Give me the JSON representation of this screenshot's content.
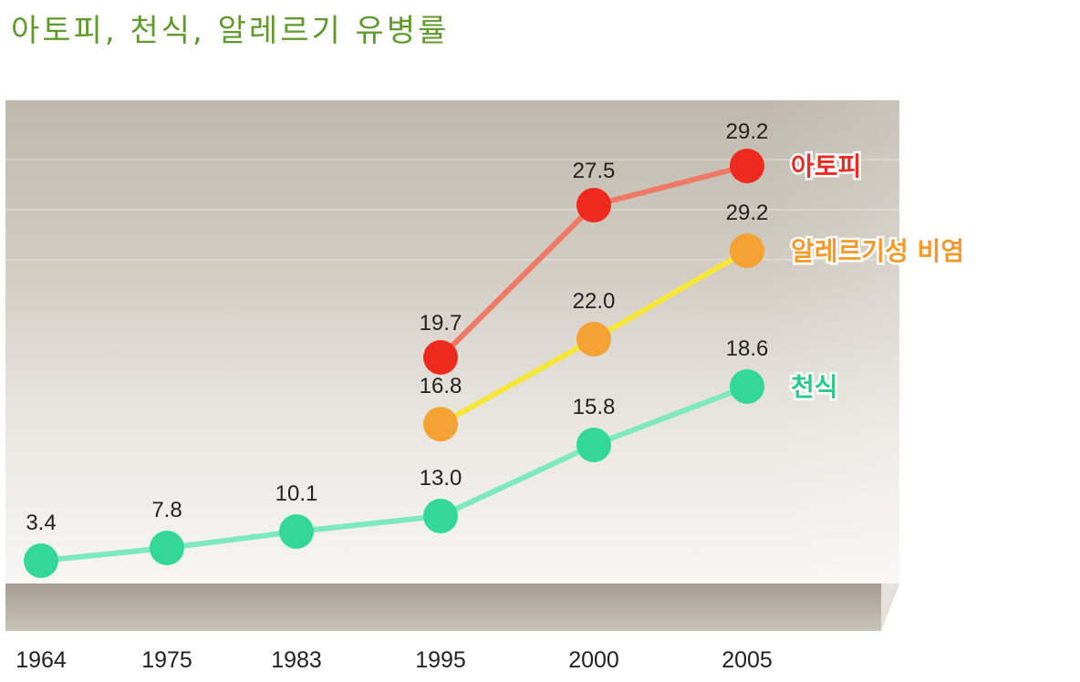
{
  "title": "아토피, 천식, 알레르기 유병률",
  "chart_data": {
    "type": "line",
    "title": "아토피, 천식, 알레르기 유병률",
    "categories": [
      "1964",
      "1975",
      "1983",
      "1995",
      "2000",
      "2005"
    ],
    "series": [
      {
        "name": "아토피",
        "color": "#ee2a1e",
        "line_color": "#ee7a66",
        "label_color": "#ea2b22",
        "values": [
          null,
          null,
          null,
          19.7,
          27.5,
          29.2
        ]
      },
      {
        "name": "알레르기성 비염",
        "color": "#f3a233",
        "line_color": "#f7e63a",
        "label_color": "#f39a2c",
        "values": [
          null,
          null,
          null,
          16.8,
          22.0,
          29.2
        ]
      },
      {
        "name": "천식",
        "color": "#33d898",
        "line_color": "#7ee8c0",
        "label_color": "#2cc98e",
        "values": [
          3.4,
          7.8,
          10.1,
          13.0,
          15.8,
          18.6
        ]
      }
    ],
    "value_labels": {
      "아토피": [
        "",
        "",
        "",
        "19.7",
        "27.5",
        "29.2"
      ],
      "알레르기성 비염": [
        "",
        "",
        "",
        "16.8",
        "22.0",
        "29.2"
      ],
      "천식": [
        "3.4",
        "7.8",
        "10.1",
        "13.0",
        "15.8",
        "18.6"
      ]
    },
    "xlabel": "",
    "ylabel": "",
    "grid": false,
    "legend": "right, next to series end points"
  }
}
